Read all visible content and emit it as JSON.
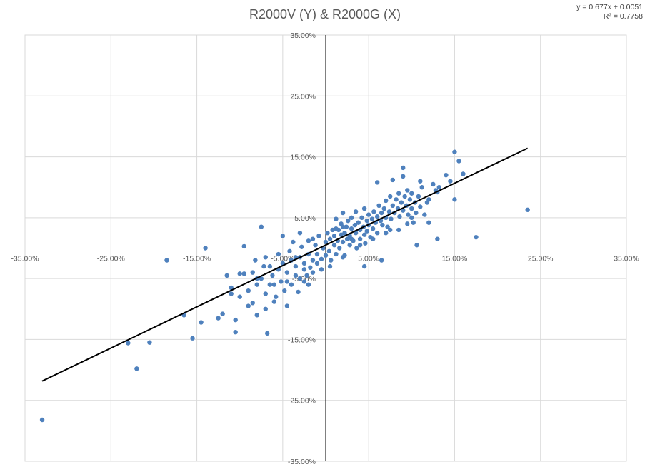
{
  "chart_data": {
    "type": "scatter",
    "title": "R2000V (Y) & R2000G (X)",
    "xlim": [
      -0.35,
      0.35
    ],
    "ylim": [
      -0.35,
      0.35
    ],
    "grid": true,
    "legend": "none",
    "x_ticks": [
      -0.35,
      -0.25,
      -0.15,
      -0.05,
      0.05,
      0.15,
      0.25,
      0.35
    ],
    "x_tick_labels": [
      "-35.00%",
      "-25.00%",
      "-15.00%",
      "-5.00%",
      "5.00%",
      "15.00%",
      "25.00%",
      "35.00%"
    ],
    "y_ticks": [
      0.35,
      0.25,
      0.15,
      0.05,
      -0.05,
      -0.15,
      -0.25,
      -0.35
    ],
    "y_tick_labels": [
      "35.00%",
      "25.00%",
      "15.00%",
      "5.00%",
      "-5.00%",
      "-15.00%",
      "-25.00%",
      "-35.00%"
    ],
    "marker_color": "#4f81bd",
    "trendline": {
      "type": "linear",
      "slope": 0.677,
      "intercept": 0.0051,
      "x_range": [
        -0.33,
        0.235
      ],
      "color": "#000000",
      "equation_label": "y = 0.677x + 0.0051",
      "r2_label": "R² = 0.7758"
    },
    "points": [
      [
        -0.33,
        -0.282
      ],
      [
        -0.23,
        -0.156
      ],
      [
        -0.22,
        -0.198
      ],
      [
        -0.205,
        -0.155
      ],
      [
        -0.185,
        -0.02
      ],
      [
        -0.165,
        -0.11
      ],
      [
        -0.155,
        -0.148
      ],
      [
        -0.145,
        -0.122
      ],
      [
        -0.14,
        0.0
      ],
      [
        -0.125,
        -0.115
      ],
      [
        -0.12,
        -0.108
      ],
      [
        -0.115,
        -0.045
      ],
      [
        -0.11,
        -0.075
      ],
      [
        -0.105,
        -0.118
      ],
      [
        -0.105,
        -0.138
      ],
      [
        -0.1,
        -0.08
      ],
      [
        -0.095,
        -0.042
      ],
      [
        -0.095,
        0.003
      ],
      [
        -0.09,
        -0.07
      ],
      [
        -0.085,
        -0.09
      ],
      [
        -0.085,
        -0.04
      ],
      [
        -0.082,
        -0.02
      ],
      [
        -0.08,
        -0.11
      ],
      [
        -0.08,
        -0.06
      ],
      [
        -0.075,
        0.035
      ],
      [
        -0.075,
        -0.05
      ],
      [
        -0.072,
        -0.03
      ],
      [
        -0.07,
        -0.075
      ],
      [
        -0.07,
        -0.015
      ],
      [
        -0.068,
        -0.14
      ],
      [
        -0.065,
        -0.06
      ],
      [
        -0.065,
        -0.03
      ],
      [
        -0.062,
        -0.045
      ],
      [
        -0.06,
        -0.088
      ],
      [
        -0.058,
        -0.08
      ],
      [
        -0.055,
        -0.035
      ],
      [
        -0.055,
        -0.01
      ],
      [
        -0.052,
        -0.055
      ],
      [
        -0.05,
        -0.025
      ],
      [
        -0.048,
        -0.07
      ],
      [
        -0.045,
        -0.095
      ],
      [
        -0.045,
        -0.04
      ],
      [
        -0.042,
        -0.005
      ],
      [
        -0.04,
        -0.06
      ],
      [
        -0.04,
        -0.02
      ],
      [
        -0.038,
        0.01
      ],
      [
        -0.035,
        -0.045
      ],
      [
        -0.035,
        -0.03
      ],
      [
        -0.032,
        -0.072
      ],
      [
        -0.03,
        -0.015
      ],
      [
        -0.03,
        -0.05
      ],
      [
        -0.028,
        0.002
      ],
      [
        -0.025,
        -0.035
      ],
      [
        -0.025,
        -0.025
      ],
      [
        -0.022,
        -0.045
      ],
      [
        -0.02,
        -0.01
      ],
      [
        -0.02,
        0.012
      ],
      [
        -0.018,
        -0.032
      ],
      [
        -0.015,
        -0.02
      ],
      [
        -0.015,
        -0.04
      ],
      [
        -0.012,
        0.005
      ],
      [
        -0.01,
        -0.025
      ],
      [
        -0.01,
        -0.01
      ],
      [
        -0.008,
        0.02
      ],
      [
        -0.005,
        -0.018
      ],
      [
        -0.005,
        -0.035
      ],
      [
        -0.003,
        0.0
      ],
      [
        0.0,
        -0.012
      ],
      [
        0.0,
        0.01
      ],
      [
        0.002,
        0.025
      ],
      [
        0.004,
        -0.005
      ],
      [
        0.005,
        0.015
      ],
      [
        0.006,
        -0.02
      ],
      [
        0.008,
        0.03
      ],
      [
        0.01,
        0.005
      ],
      [
        0.01,
        0.02
      ],
      [
        0.012,
        0.048
      ],
      [
        0.012,
        -0.01
      ],
      [
        0.014,
        0.012
      ],
      [
        0.015,
        0.03
      ],
      [
        0.016,
        0.0
      ],
      [
        0.018,
        0.022
      ],
      [
        0.018,
        0.04
      ],
      [
        0.02,
        0.01
      ],
      [
        0.02,
        0.058
      ],
      [
        0.022,
        0.025
      ],
      [
        0.022,
        -0.012
      ],
      [
        0.024,
        0.035
      ],
      [
        0.025,
        0.015
      ],
      [
        0.026,
        0.045
      ],
      [
        0.028,
        0.02
      ],
      [
        0.028,
        0.005
      ],
      [
        0.03,
        0.032
      ],
      [
        0.03,
        0.05
      ],
      [
        0.032,
        0.012
      ],
      [
        0.034,
        0.038
      ],
      [
        0.035,
        0.025
      ],
      [
        0.035,
        0.06
      ],
      [
        0.036,
        0.0
      ],
      [
        0.038,
        0.042
      ],
      [
        0.04,
        0.03
      ],
      [
        0.04,
        0.015
      ],
      [
        0.042,
        0.05
      ],
      [
        0.044,
        0.035
      ],
      [
        0.045,
        0.065
      ],
      [
        0.045,
        0.022
      ],
      [
        0.046,
        0.008
      ],
      [
        0.048,
        0.045
      ],
      [
        0.048,
        0.028
      ],
      [
        0.05,
        0.038
      ],
      [
        0.05,
        0.055
      ],
      [
        0.052,
        0.018
      ],
      [
        0.054,
        0.048
      ],
      [
        0.055,
        0.032
      ],
      [
        0.056,
        0.06
      ],
      [
        0.058,
        0.042
      ],
      [
        0.06,
        0.052
      ],
      [
        0.06,
        0.025
      ],
      [
        0.062,
        0.07
      ],
      [
        0.064,
        0.045
      ],
      [
        0.065,
        0.058
      ],
      [
        0.066,
        0.038
      ],
      [
        0.068,
        0.065
      ],
      [
        0.07,
        0.05
      ],
      [
        0.07,
        0.078
      ],
      [
        0.072,
        0.035
      ],
      [
        0.074,
        0.06
      ],
      [
        0.075,
        0.085
      ],
      [
        0.076,
        0.048
      ],
      [
        0.078,
        0.07
      ],
      [
        0.078,
        0.112
      ],
      [
        0.08,
        0.058
      ],
      [
        0.082,
        0.08
      ],
      [
        0.084,
        0.065
      ],
      [
        0.085,
        0.09
      ],
      [
        0.086,
        0.052
      ],
      [
        0.088,
        0.075
      ],
      [
        0.09,
        0.132
      ],
      [
        0.09,
        0.062
      ],
      [
        0.092,
        0.085
      ],
      [
        0.094,
        0.07
      ],
      [
        0.095,
        0.095
      ],
      [
        0.096,
        0.055
      ],
      [
        0.098,
        0.08
      ],
      [
        0.1,
        0.065
      ],
      [
        0.1,
        0.09
      ],
      [
        0.102,
        0.042
      ],
      [
        0.104,
        0.075
      ],
      [
        0.105,
        0.058
      ],
      [
        0.106,
        0.005
      ],
      [
        0.108,
        0.085
      ],
      [
        0.11,
        0.068
      ],
      [
        0.112,
        0.1
      ],
      [
        0.115,
        0.055
      ],
      [
        0.118,
        0.075
      ],
      [
        0.12,
        0.042
      ],
      [
        0.125,
        0.105
      ],
      [
        0.128,
        0.095
      ],
      [
        0.13,
        0.015
      ],
      [
        0.132,
        0.1
      ],
      [
        0.14,
        0.12
      ],
      [
        0.145,
        0.11
      ],
      [
        0.15,
        0.08
      ],
      [
        0.15,
        0.158
      ],
      [
        0.155,
        0.143
      ],
      [
        0.16,
        0.122
      ],
      [
        0.175,
        0.018
      ],
      [
        0.235,
        0.063
      ],
      [
        0.065,
        -0.02
      ],
      [
        0.045,
        -0.03
      ],
      [
        0.02,
        -0.015
      ],
      [
        0.005,
        -0.03
      ],
      [
        -0.015,
        0.015
      ],
      [
        -0.03,
        0.025
      ],
      [
        -0.05,
        0.02
      ],
      [
        0.06,
        0.108
      ],
      [
        0.09,
        0.118
      ],
      [
        0.11,
        0.11
      ],
      [
        0.13,
        0.092
      ],
      [
        0.12,
        0.08
      ],
      [
        0.085,
        0.03
      ],
      [
        0.095,
        0.04
      ],
      [
        0.07,
        0.025
      ],
      [
        0.055,
        0.015
      ],
      [
        0.04,
        0.005
      ],
      [
        0.075,
        0.03
      ],
      [
        0.1,
        0.05
      ],
      [
        0.02,
        0.035
      ],
      [
        0.012,
        0.032
      ],
      [
        0.03,
        0.015
      ],
      [
        -0.02,
        -0.06
      ],
      [
        -0.06,
        -0.06
      ],
      [
        -0.09,
        -0.095
      ],
      [
        -0.11,
        -0.065
      ],
      [
        -0.1,
        -0.042
      ],
      [
        -0.08,
        -0.05
      ],
      [
        -0.045,
        -0.055
      ],
      [
        -0.035,
        -0.015
      ],
      [
        -0.025,
        -0.055
      ],
      [
        -0.07,
        -0.1
      ]
    ]
  }
}
